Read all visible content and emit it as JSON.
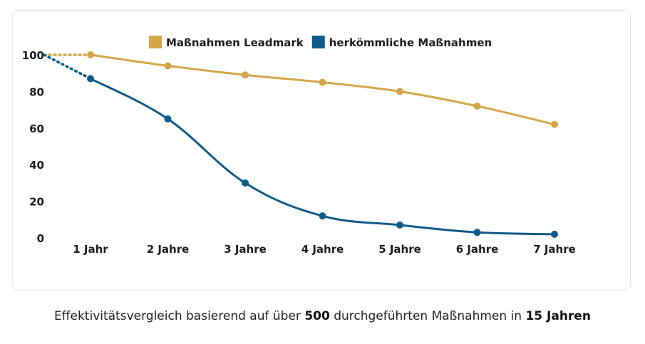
{
  "chart_data": {
    "type": "line",
    "categories": [
      "1 Jahr",
      "2 Jahre",
      "3 Jahre",
      "4 Jahre",
      "5 Jahre",
      "6 Jahre",
      "7 Jahre"
    ],
    "series": [
      {
        "name": "Maßnahmen Leadmark",
        "color": "#D4A64A",
        "start": 100,
        "values": [
          100,
          94,
          89,
          85,
          80,
          72,
          62
        ]
      },
      {
        "name": "herkömmliche Maßnahmen",
        "color": "#0E5A8A",
        "start": 100,
        "values": [
          87,
          65,
          30,
          12,
          7,
          3,
          2
        ]
      }
    ],
    "yticks": [
      0,
      20,
      40,
      60,
      80,
      100
    ],
    "ylim": [
      0,
      100
    ],
    "grid": false,
    "legend": "top-center"
  },
  "caption": {
    "part1": "Effektivitätsvergleich basierend auf über ",
    "num1": "500",
    "part2": " durchgeführten Maßnahmen in ",
    "num2": "15 Jahren"
  }
}
